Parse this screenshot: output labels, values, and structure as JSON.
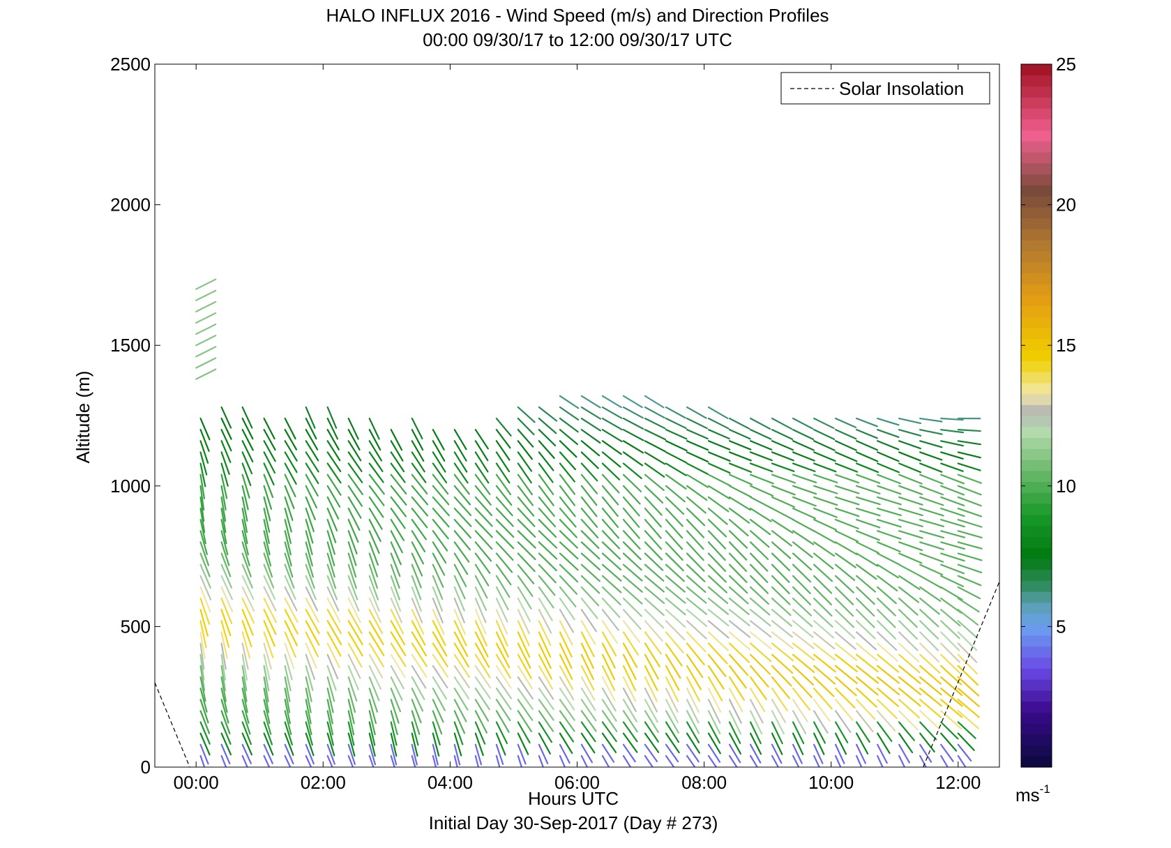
{
  "chart_data": {
    "type": "wind-barb-profile",
    "title": "HALO INFLUX 2016 - Wind Speed (m/s) and Direction Profiles",
    "subtitle": "00:00 09/30/17 to 12:00 09/30/17  UTC",
    "xlabel": "Hours UTC",
    "xlabel2": "Initial Day 30-Sep-2017 (Day # 273)",
    "ylabel": "Altitude (m)",
    "x_ticks": [
      "00:00",
      "02:00",
      "04:00",
      "06:00",
      "08:00",
      "10:00",
      "12:00"
    ],
    "y_ticks": [
      "0",
      "500",
      "1000",
      "1500",
      "2000",
      "2500"
    ],
    "xlim_hours": [
      -0.65,
      12.65
    ],
    "ylim": [
      0,
      2500
    ],
    "legend": {
      "label": "Solar Insolation",
      "placement": "top-right",
      "style": "dashed black line"
    },
    "colorbar": {
      "label": "ms",
      "label_exponent": "-1",
      "range": [
        0,
        25
      ],
      "ticks": [
        "5",
        "10",
        "15",
        "20",
        "25"
      ],
      "stops": [
        {
          "v": 0,
          "c": "#0a0a3c"
        },
        {
          "v": 2,
          "c": "#3a0a8c"
        },
        {
          "v": 3.5,
          "c": "#6a4ae6"
        },
        {
          "v": 5,
          "c": "#6aa0f0"
        },
        {
          "v": 5.8,
          "c": "#5aa0b0"
        },
        {
          "v": 6.5,
          "c": "#2e8a5a"
        },
        {
          "v": 7.5,
          "c": "#007a10"
        },
        {
          "v": 9,
          "c": "#1a9a2a"
        },
        {
          "v": 10.5,
          "c": "#6ab86a"
        },
        {
          "v": 12,
          "c": "#b6dcb0"
        },
        {
          "v": 12.6,
          "c": "#b4b4b4"
        },
        {
          "v": 13.3,
          "c": "#f0e8a8"
        },
        {
          "v": 14.5,
          "c": "#f0d000"
        },
        {
          "v": 16.5,
          "c": "#e6a010"
        },
        {
          "v": 18.5,
          "c": "#b47a30"
        },
        {
          "v": 20.5,
          "c": "#7a4a3a"
        },
        {
          "v": 22.5,
          "c": "#f06090"
        },
        {
          "v": 25,
          "c": "#a01020"
        }
      ]
    },
    "solar_insolation": [
      {
        "x": -0.65,
        "y": 300
      },
      {
        "x": -0.1,
        "y": 0
      },
      {
        "x": 11.45,
        "y": 0
      },
      {
        "x": 12.65,
        "y": 660
      }
    ],
    "profile_times_hours": [
      0.07,
      0.4,
      0.73,
      1.07,
      1.4,
      1.73,
      2.07,
      2.4,
      2.73,
      3.07,
      3.4,
      3.73,
      4.07,
      4.4,
      4.73,
      5.07,
      5.4,
      5.73,
      6.07,
      6.4,
      6.73,
      7.07,
      7.4,
      7.73,
      8.07,
      8.4,
      8.73,
      9.07,
      9.4,
      9.73,
      10.07,
      10.4,
      10.73,
      11.07,
      11.4,
      11.73,
      12.0
    ],
    "profile_tops_m": [
      1260,
      1280,
      1280,
      1250,
      1260,
      1280,
      1280,
      1260,
      1240,
      1230,
      1240,
      1200,
      1200,
      1230,
      1270,
      1290,
      1300,
      1320,
      1340,
      1350,
      1350,
      1330,
      1310,
      1300,
      1290,
      1270,
      1260,
      1240,
      1240,
      1250,
      1250,
      1250,
      1250,
      1250,
      1250,
      1250,
      1250
    ],
    "upper_profile": {
      "time_hours": 0.0,
      "altitudes_m": [
        1380,
        1420,
        1460,
        1500,
        1540,
        1580,
        1620,
        1660,
        1700
      ],
      "speed_ms": 11,
      "direction": "northwest"
    },
    "low_level_speed_ms": 4,
    "max_speed_layer_m": [
      250,
      600
    ],
    "max_speed_ms": 14.5,
    "notes": ""
  }
}
